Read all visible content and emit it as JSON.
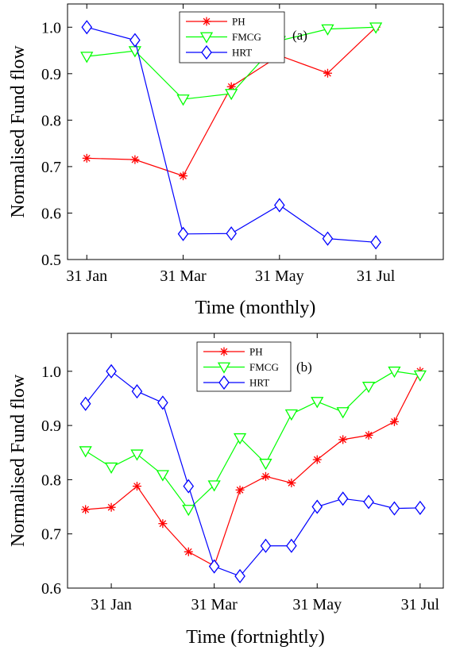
{
  "chart_data": [
    {
      "type": "line",
      "panel_label": "(a)",
      "xlabel": "Time (monthly)",
      "ylabel": "Normalised Fund flow",
      "ylim": [
        0.5,
        1.05
      ],
      "yticks": [
        "0.5",
        "0.6",
        "0.7",
        "0.8",
        "0.9",
        "1.0"
      ],
      "ytick_values": [
        0.5,
        0.6,
        0.7,
        0.8,
        0.9,
        1.0
      ],
      "xlim": [
        0.6,
        8.4
      ],
      "xticks": [
        "31 Jan",
        "31 Mar",
        "31 May",
        "31 Jul"
      ],
      "xtick_positions": [
        1,
        3,
        5,
        7
      ],
      "x": [
        1,
        2,
        3,
        4,
        5,
        6,
        7
      ],
      "legend_position": "top-center",
      "series": [
        {
          "name": "PH",
          "color": "#ff0000",
          "marker": "asterisk",
          "values": [
            0.718,
            0.715,
            0.68,
            0.872,
            0.939,
            0.901,
            1.0
          ]
        },
        {
          "name": "FMCG",
          "color": "#00ff00",
          "marker": "triangle-down",
          "values": [
            0.937,
            0.949,
            0.845,
            0.857,
            0.971,
            0.996,
            1.0
          ]
        },
        {
          "name": "HRT",
          "color": "#0000ff",
          "marker": "diamond",
          "values": [
            1.0,
            0.972,
            0.555,
            0.556,
            0.617,
            0.545,
            0.537
          ]
        }
      ]
    },
    {
      "type": "line",
      "panel_label": "(b)",
      "xlabel": "Time (fortnightly)",
      "ylabel": "Normalised Fund flow",
      "ylim": [
        0.6,
        1.07
      ],
      "yticks": [
        "0.6",
        "0.7",
        "0.8",
        "0.9",
        "1.0"
      ],
      "ytick_values": [
        0.6,
        0.7,
        0.8,
        0.9,
        1.0
      ],
      "xlim": [
        0.3,
        14.9
      ],
      "xticks": [
        "31 Jan",
        "31 Mar",
        "31 May",
        "31 Jul"
      ],
      "xtick_positions": [
        2,
        6,
        10,
        14
      ],
      "x": [
        1,
        2,
        3,
        4,
        5,
        6,
        7,
        8,
        9,
        10,
        11,
        12,
        13,
        14
      ],
      "legend_position": "top-center",
      "series": [
        {
          "name": "PH",
          "color": "#ff0000",
          "marker": "asterisk",
          "values": [
            0.745,
            0.749,
            0.788,
            0.719,
            0.667,
            0.641,
            0.781,
            0.806,
            0.794,
            0.837,
            0.874,
            0.882,
            0.907,
            1.0
          ]
        },
        {
          "name": "FMCG",
          "color": "#00ff00",
          "marker": "triangle-down",
          "values": [
            0.853,
            0.823,
            0.847,
            0.809,
            0.745,
            0.79,
            0.877,
            0.83,
            0.921,
            0.944,
            0.925,
            0.972,
            1.0,
            0.993
          ]
        },
        {
          "name": "HRT",
          "color": "#0000ff",
          "marker": "diamond",
          "values": [
            0.94,
            1.0,
            0.963,
            0.942,
            0.788,
            0.64,
            0.622,
            0.678,
            0.678,
            0.75,
            0.765,
            0.759,
            0.747,
            0.748
          ]
        }
      ]
    }
  ]
}
